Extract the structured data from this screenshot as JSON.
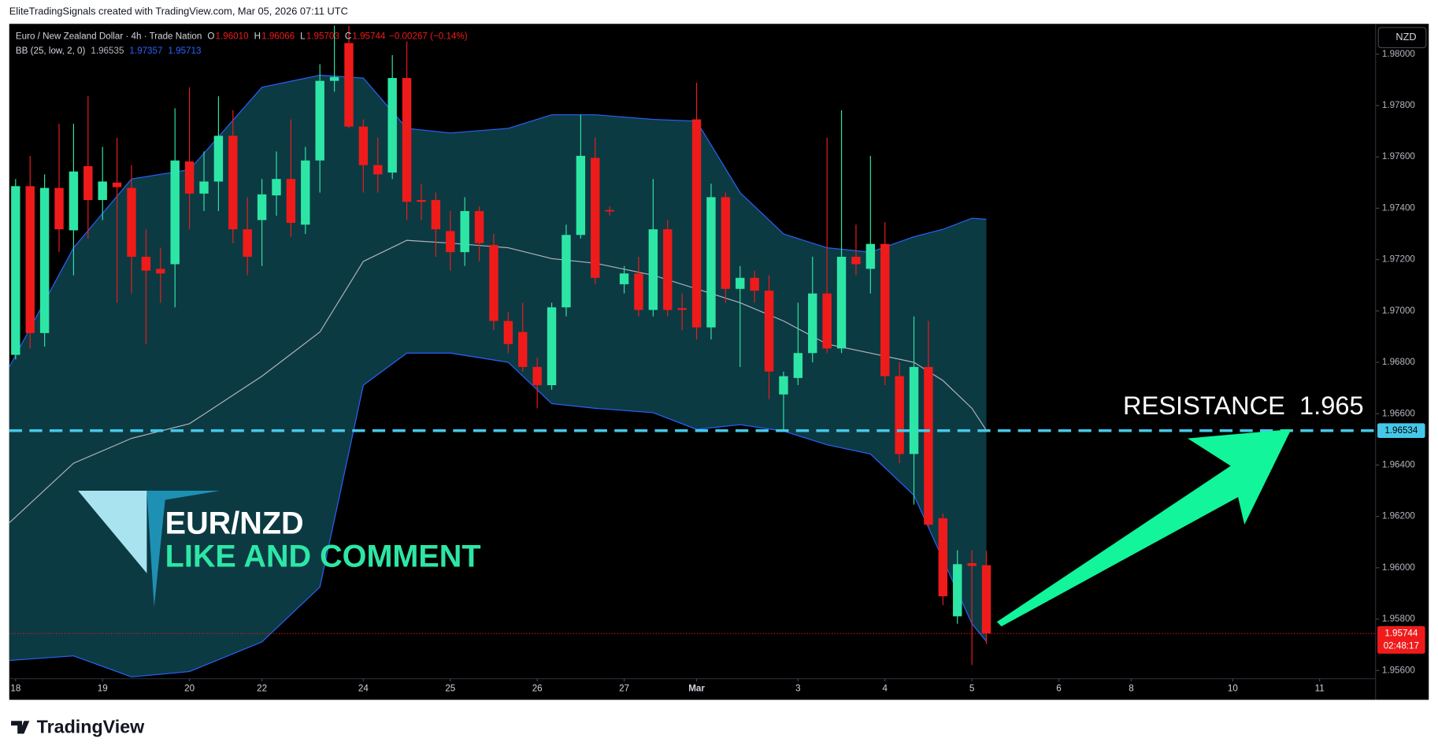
{
  "header": {
    "credit": "EliteTradingSignals created with TradingView.com, Mar 05, 2026 07:11 UTC",
    "currency_button": "NZD",
    "footer_brand": "TradingView"
  },
  "chart_data": {
    "type": "candlestick",
    "title": "Euro / New Zealand Dollar · 4h · Trade Nation",
    "legend": {
      "ohlc": [
        {
          "key": "O",
          "value": "1.96010"
        },
        {
          "key": "H",
          "value": "1.96066"
        },
        {
          "key": "L",
          "value": "1.95703"
        },
        {
          "key": "C",
          "value": "1.95744"
        }
      ],
      "change": "−0.00267 (−0.14%)"
    },
    "up_color": "#2de6a6",
    "down_color": "#ef1b1b",
    "x": [
      0,
      1,
      2,
      3,
      4,
      5,
      6,
      7,
      8,
      9,
      10,
      11,
      12,
      13,
      14,
      15,
      16,
      17,
      18,
      19,
      20,
      21,
      22,
      23,
      24,
      25,
      26,
      27,
      28,
      29,
      30,
      31,
      32,
      33,
      34,
      35,
      36,
      37,
      38,
      39,
      40,
      41,
      42,
      43,
      44,
      45,
      46,
      47,
      48,
      49,
      50,
      51,
      52,
      53,
      54,
      55,
      56,
      57,
      58,
      59,
      60,
      61,
      62,
      63,
      64,
      65,
      66,
      67
    ],
    "open": [
      1.96829,
      1.97486,
      1.96914,
      1.97479,
      1.97314,
      1.97564,
      1.97432,
      1.975,
      1.97479,
      1.97211,
      1.97164,
      1.97182,
      1.97582,
      1.97457,
      1.97504,
      1.97682,
      1.97318,
      1.97354,
      1.9745,
      1.97514,
      1.97336,
      1.97586,
      1.97896,
      1.98043,
      1.97718,
      1.97568,
      1.97539,
      1.97907,
      1.97432,
      1.97432,
      1.97311,
      1.97229,
      1.97389,
      1.97257,
      1.96961,
      1.96918,
      1.96782,
      1.96711,
      1.97014,
      1.97296,
      1.97596,
      1.97393,
      1.97104,
      1.97146,
      1.97004,
      1.97318,
      1.97011,
      1.97746,
      1.96936,
      1.97443,
      1.97086,
      1.97129,
      1.97079,
      1.96675,
      1.96739,
      1.96836,
      1.97068,
      1.96854,
      1.97211,
      1.97164,
      1.97261,
      1.96746,
      1.96443,
      1.96782,
      1.96193,
      1.95811,
      1.96018,
      1.9601
    ],
    "high": [
      1.97514,
      1.97604,
      1.97532,
      1.97729,
      1.97729,
      1.97836,
      1.97639,
      1.97675,
      1.97568,
      1.97318,
      1.97246,
      1.97789,
      1.97871,
      1.97621,
      1.97836,
      1.97782,
      1.97443,
      1.97514,
      1.97621,
      1.97746,
      1.97639,
      1.97961,
      1.98111,
      1.98111,
      1.97746,
      1.97675,
      1.97996,
      1.9805,
      1.97496,
      1.97461,
      1.97389,
      1.97443,
      1.97407,
      1.973,
      1.96996,
      1.97032,
      1.96818,
      1.97032,
      1.97336,
      1.97764,
      1.97675,
      1.97407,
      1.97175,
      1.97211,
      1.97514,
      1.97354,
      1.97068,
      1.97889,
      1.97496,
      1.97461,
      1.97175,
      1.97157,
      1.97139,
      1.96764,
      1.97032,
      1.97211,
      1.97675,
      1.97782,
      1.97336,
      1.97604,
      1.97346,
      1.968,
      1.96979,
      1.96961,
      1.96211,
      1.96068,
      1.96068,
      1.96066
    ],
    "low": [
      1.96811,
      1.96854,
      1.96861,
      1.97229,
      1.97139,
      1.97282,
      1.97354,
      1.97032,
      1.97068,
      1.96871,
      1.97032,
      1.97014,
      1.97318,
      1.97389,
      1.97389,
      1.97264,
      1.97139,
      1.97175,
      1.97371,
      1.97289,
      1.973,
      1.97461,
      1.97854,
      1.97711,
      1.97461,
      1.97461,
      1.97514,
      1.97354,
      1.97354,
      1.97211,
      1.97157,
      1.97175,
      1.97193,
      1.96925,
      1.96836,
      1.96764,
      1.96621,
      1.96693,
      1.96979,
      1.97282,
      1.97104,
      1.97371,
      1.97068,
      1.96979,
      1.96979,
      1.96979,
      1.96925,
      1.96889,
      1.96889,
      1.97032,
      1.96782,
      1.97032,
      1.96657,
      1.96532,
      1.96711,
      1.968,
      1.96836,
      1.96836,
      1.97139,
      1.97068,
      1.96711,
      1.96407,
      1.96246,
      1.96157,
      1.95854,
      1.95782,
      1.95621,
      1.95703
    ],
    "close": [
      1.97486,
      1.96914,
      1.97479,
      1.97318,
      1.97543,
      1.97432,
      1.97504,
      1.97482,
      1.97211,
      1.97157,
      1.97146,
      1.97586,
      1.97457,
      1.97504,
      1.97682,
      1.97318,
      1.97211,
      1.97454,
      1.97514,
      1.97343,
      1.97586,
      1.97896,
      1.97911,
      1.97718,
      1.97568,
      1.97532,
      1.97907,
      1.97425,
      1.97425,
      1.97318,
      1.97229,
      1.97389,
      1.97264,
      1.96961,
      1.96871,
      1.96782,
      1.96711,
      1.97014,
      1.97296,
      1.97604,
      1.97129,
      1.97389,
      1.97146,
      1.97004,
      1.97318,
      1.97004,
      1.97004,
      1.96936,
      1.97443,
      1.97086,
      1.97129,
      1.97079,
      1.96764,
      1.96746,
      1.96836,
      1.97068,
      1.96854,
      1.97211,
      1.97182,
      1.97261,
      1.96746,
      1.96443,
      1.96782,
      1.96168,
      1.95889,
      1.96014,
      1.96007,
      1.95744
    ],
    "bands": {
      "name": "BB (25, low, 2, 0)",
      "value_labels": [
        "1.96535",
        "1.97357",
        "1.95713"
      ],
      "x": [
        -0.44,
        4,
        8,
        12,
        17,
        21,
        24,
        27,
        30,
        34,
        37,
        40,
        44,
        47,
        50,
        53,
        56,
        59,
        62,
        64,
        66,
        67
      ],
      "upper": [
        1.96782,
        1.97246,
        1.97514,
        1.9755,
        1.97871,
        1.97918,
        1.97907,
        1.97711,
        1.97693,
        1.97711,
        1.97764,
        1.97764,
        1.97746,
        1.97739,
        1.97461,
        1.973,
        1.97246,
        1.97229,
        1.97289,
        1.97318,
        1.97361,
        1.97357
      ],
      "middle": [
        1.96175,
        1.96407,
        1.96504,
        1.96561,
        1.96746,
        1.96918,
        1.97193,
        1.97275,
        1.97264,
        1.97246,
        1.97204,
        1.97186,
        1.97139,
        1.97086,
        1.97032,
        1.96961,
        1.96871,
        1.96836,
        1.968,
        1.96729,
        1.96621,
        1.96535
      ],
      "lower": [
        1.95639,
        1.95657,
        1.95575,
        1.95596,
        1.95711,
        1.95925,
        1.96711,
        1.96836,
        1.96836,
        1.968,
        1.96639,
        1.96621,
        1.96604,
        1.96539,
        1.96557,
        1.96532,
        1.96479,
        1.96443,
        1.96282,
        1.96032,
        1.95782,
        1.95713
      ],
      "fill_color": "#0c3a42",
      "line_color": "#2962ff",
      "middle_color": "#b2b5be"
    },
    "resistance": {
      "label": "RESISTANCE  1.965",
      "value": 1.96534,
      "color": "#45c8e8"
    },
    "last_price": {
      "value": 1.95744,
      "countdown": "02:48:17",
      "color": "#ef1b1b"
    },
    "annotations": {
      "pair": "EUR/NZD",
      "call_to_action": "LIKE AND COMMENT"
    },
    "xlim": [
      -0.44,
      93.86
    ],
    "xticks": [
      {
        "value": 0,
        "label": "18"
      },
      {
        "value": 6,
        "label": "19"
      },
      {
        "value": 12,
        "label": "20"
      },
      {
        "value": 17,
        "label": "22"
      },
      {
        "value": 24,
        "label": "24"
      },
      {
        "value": 30,
        "label": "25"
      },
      {
        "value": 36,
        "label": "26"
      },
      {
        "value": 42,
        "label": "27"
      },
      {
        "value": 47,
        "label": "Mar"
      },
      {
        "value": 54,
        "label": "3"
      },
      {
        "value": 60,
        "label": "4"
      },
      {
        "value": 66,
        "label": "5"
      },
      {
        "value": 72,
        "label": "6"
      },
      {
        "value": 77,
        "label": "8"
      },
      {
        "value": 84,
        "label": "10"
      },
      {
        "value": 90,
        "label": "11"
      }
    ],
    "ylim": [
      1.95568,
      1.98118
    ],
    "yticks": [
      {
        "value": 1.956,
        "label": "1.95600"
      },
      {
        "value": 1.958,
        "label": "1.95800"
      },
      {
        "value": 1.96,
        "label": "1.96000"
      },
      {
        "value": 1.962,
        "label": "1.96200"
      },
      {
        "value": 1.964,
        "label": "1.96400"
      },
      {
        "value": 1.966,
        "label": "1.96600"
      },
      {
        "value": 1.968,
        "label": "1.96800"
      },
      {
        "value": 1.97,
        "label": "1.97000"
      },
      {
        "value": 1.972,
        "label": "1.97200"
      },
      {
        "value": 1.974,
        "label": "1.97400"
      },
      {
        "value": 1.976,
        "label": "1.97600"
      },
      {
        "value": 1.978,
        "label": "1.97800"
      },
      {
        "value": 1.98,
        "label": "1.98000"
      }
    ],
    "grid": false
  }
}
